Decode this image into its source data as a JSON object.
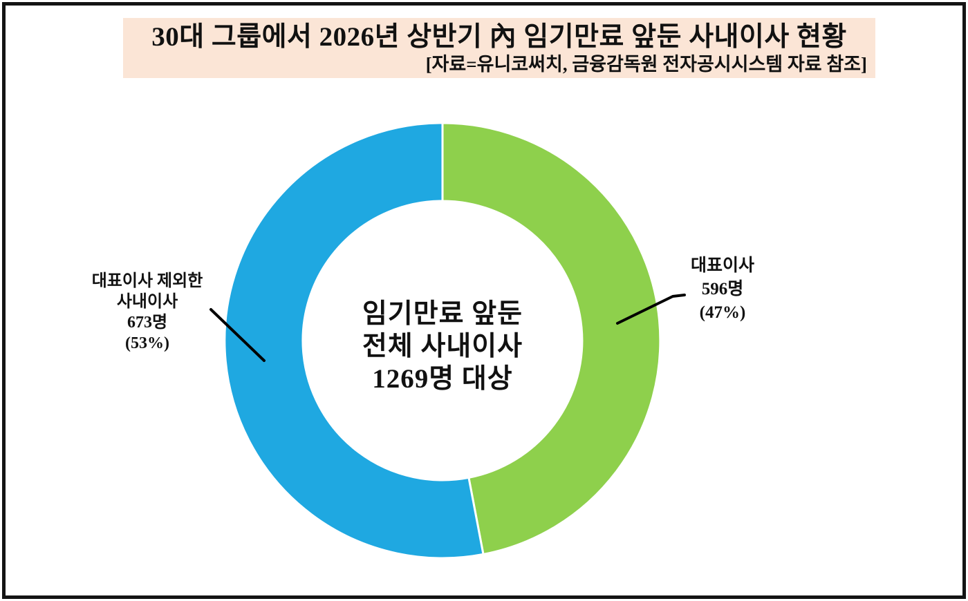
{
  "page": {
    "background": "#ffffff",
    "frame_border_color": "#141414"
  },
  "header": {
    "title": "30대 그룹에서 2026년 상반기 內 임기만료 앞둔 사내이사 현황",
    "subtitle": "[자료=유니코써치, 금융감독원 전자공시시스템 자료 참조]",
    "background": "#fbe5d6"
  },
  "chart_data": {
    "type": "pie",
    "variant": "donut",
    "title": "30대 그룹에서 2026년 상반기 內 임기만료 앞둔 사내이사 현황",
    "source_note": "[자료=유니코써치, 금융감독원 전자공시시스템 자료 참조]",
    "total_value": 1269,
    "center_label_lines": [
      "임기만료 앞둔",
      "전체 사내이사",
      "1269명 대상"
    ],
    "start_angle_deg": 0,
    "direction": "clockwise",
    "hole_ratio": 0.64,
    "legend": "none",
    "slices": [
      {
        "name": "대표이사",
        "value": 596,
        "percent": 47,
        "color": "#8ed04c",
        "label_side": "right",
        "label_lines": [
          "대표이사",
          "596명",
          "(47%)"
        ]
      },
      {
        "name": "대표이사 제외한 사내이사",
        "value": 673,
        "percent": 53,
        "color": "#1fa8e1",
        "label_side": "left",
        "label_lines": [
          "대표이사 제외한",
          "사내이사",
          "673명",
          "(53%)"
        ]
      }
    ]
  }
}
